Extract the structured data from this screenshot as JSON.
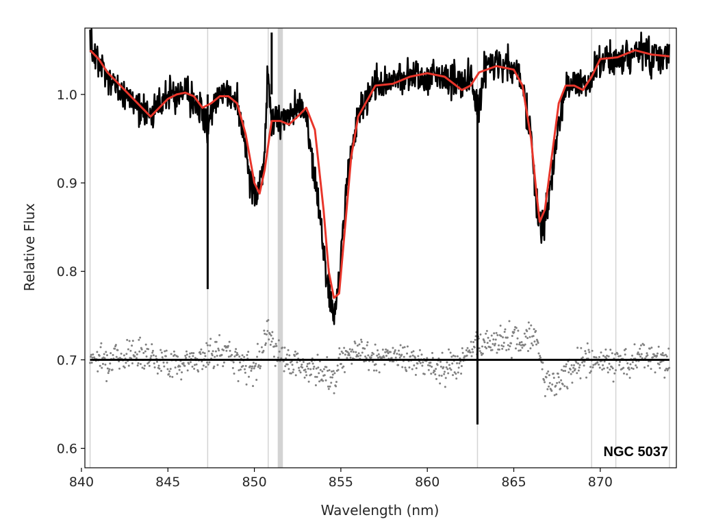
{
  "chart_data": {
    "type": "line",
    "xlabel": "Wavelength (nm)",
    "ylabel": "Relative Flux",
    "xlim": [
      840.2,
      874.4
    ],
    "ylim": [
      0.578,
      1.075
    ],
    "x_ticks": [
      840,
      845,
      850,
      855,
      860,
      865,
      870
    ],
    "y_ticks": [
      0.6,
      0.7,
      0.8,
      0.9,
      1.0
    ],
    "x_tick_labels": [
      "840",
      "845",
      "850",
      "855",
      "860",
      "865",
      "870"
    ],
    "y_tick_labels": [
      "0.6",
      "0.7",
      "0.8",
      "0.9",
      "1.0"
    ],
    "grid": false,
    "annotation": "NGC 5037",
    "masked_regions": [
      840.5,
      847.3,
      850.8,
      851.5,
      862.9,
      869.5,
      870.9,
      874.0
    ],
    "masked_band": [
      851.35,
      851.65
    ],
    "residual_baseline": 0.7,
    "colors": {
      "observed": "#000000",
      "model": "#e8352a",
      "residuals": "#808080",
      "mask": "#d3d3d3",
      "baseline": "#000000"
    },
    "series": [
      {
        "name": "",
        "role": "observed",
        "x": [
          840.5,
          841.0,
          841.5,
          842.0,
          842.5,
          843.0,
          843.5,
          844.0,
          844.5,
          845.0,
          845.5,
          846.0,
          846.5,
          847.0,
          847.3,
          847.6,
          848.0,
          848.5,
          849.0,
          849.4,
          849.8,
          850.0,
          850.3,
          850.6,
          850.8,
          851.0,
          851.5,
          852.0,
          852.5,
          853.0,
          853.4,
          853.8,
          854.1,
          854.4,
          854.6,
          854.8,
          855.1,
          855.5,
          856.0,
          857.0,
          858.0,
          859.0,
          860.0,
          861.0,
          862.0,
          862.5,
          862.9,
          863.3,
          864.0,
          865.0,
          865.5,
          866.0,
          866.3,
          866.6,
          867.0,
          867.5,
          868.0,
          868.5,
          869.0,
          869.5,
          870.0,
          871.0,
          872.0,
          873.0,
          874.0
        ],
        "y": [
          1.05,
          1.04,
          1.02,
          1.01,
          1.0,
          0.99,
          0.985,
          0.975,
          0.99,
          1.0,
          1.0,
          1.0,
          0.99,
          0.985,
          0.96,
          0.985,
          0.995,
          1.0,
          0.99,
          0.95,
          0.9,
          0.885,
          0.895,
          0.94,
          1.03,
          0.97,
          0.968,
          0.975,
          0.985,
          0.975,
          0.92,
          0.86,
          0.8,
          0.77,
          0.75,
          0.775,
          0.84,
          0.92,
          0.98,
          1.01,
          1.015,
          1.02,
          1.02,
          1.02,
          1.01,
          1.02,
          0.98,
          1.03,
          1.035,
          1.03,
          1.01,
          0.95,
          0.88,
          0.85,
          0.88,
          0.95,
          1.01,
          1.01,
          1.01,
          1.02,
          1.04,
          1.04,
          1.05,
          1.045,
          1.045
        ]
      },
      {
        "name": "",
        "role": "model",
        "x": [
          840.5,
          841.0,
          841.5,
          842.0,
          842.5,
          843.0,
          843.5,
          844.0,
          844.5,
          845.0,
          845.5,
          846.0,
          846.5,
          847.0,
          847.5,
          848.0,
          848.5,
          849.0,
          849.5,
          850.0,
          850.3,
          850.6,
          851.0,
          851.5,
          852.0,
          852.5,
          853.0,
          853.5,
          854.0,
          854.3,
          854.6,
          854.9,
          855.2,
          855.6,
          856.0,
          857.0,
          858.0,
          859.0,
          860.0,
          861.0,
          862.0,
          862.5,
          863.0,
          864.0,
          865.0,
          865.5,
          866.0,
          866.3,
          866.5,
          866.8,
          867.2,
          867.6,
          868.0,
          868.5,
          869.0,
          869.5,
          870.0,
          871.0,
          872.0,
          873.0,
          874.0
        ],
        "y": [
          1.05,
          1.04,
          1.025,
          1.015,
          1.005,
          0.995,
          0.985,
          0.975,
          0.985,
          0.995,
          1.0,
          1.002,
          0.998,
          0.985,
          0.99,
          0.998,
          0.998,
          0.99,
          0.955,
          0.9,
          0.888,
          0.915,
          0.97,
          0.97,
          0.966,
          0.975,
          0.985,
          0.96,
          0.87,
          0.8,
          0.77,
          0.775,
          0.84,
          0.93,
          0.975,
          1.01,
          1.012,
          1.02,
          1.024,
          1.02,
          1.005,
          1.01,
          1.025,
          1.032,
          1.028,
          1.01,
          0.95,
          0.89,
          0.856,
          0.87,
          0.93,
          0.99,
          1.01,
          1.01,
          1.005,
          1.02,
          1.04,
          1.042,
          1.05,
          1.045,
          1.043
        ]
      },
      {
        "name": "",
        "role": "residuals",
        "x": [
          840.5,
          841.5,
          842.5,
          843.5,
          844.5,
          845.5,
          846.5,
          847.5,
          848.5,
          849.5,
          850.3,
          850.8,
          851.2,
          852.0,
          853.0,
          854.0,
          854.6,
          855.2,
          856.0,
          857.0,
          858.0,
          859.0,
          860.0,
          861.0,
          862.0,
          862.8,
          863.5,
          864.5,
          865.5,
          866.3,
          866.8,
          867.5,
          868.5,
          869.5,
          870.5,
          871.5,
          872.5,
          873.5
        ],
        "y": [
          0.705,
          0.7,
          0.705,
          0.71,
          0.7,
          0.695,
          0.7,
          0.705,
          0.71,
          0.69,
          0.7,
          0.74,
          0.71,
          0.7,
          0.69,
          0.685,
          0.68,
          0.71,
          0.71,
          0.7,
          0.705,
          0.7,
          0.695,
          0.69,
          0.7,
          0.715,
          0.72,
          0.725,
          0.72,
          0.73,
          0.675,
          0.67,
          0.695,
          0.7,
          0.695,
          0.7,
          0.705,
          0.7
        ]
      }
    ]
  }
}
